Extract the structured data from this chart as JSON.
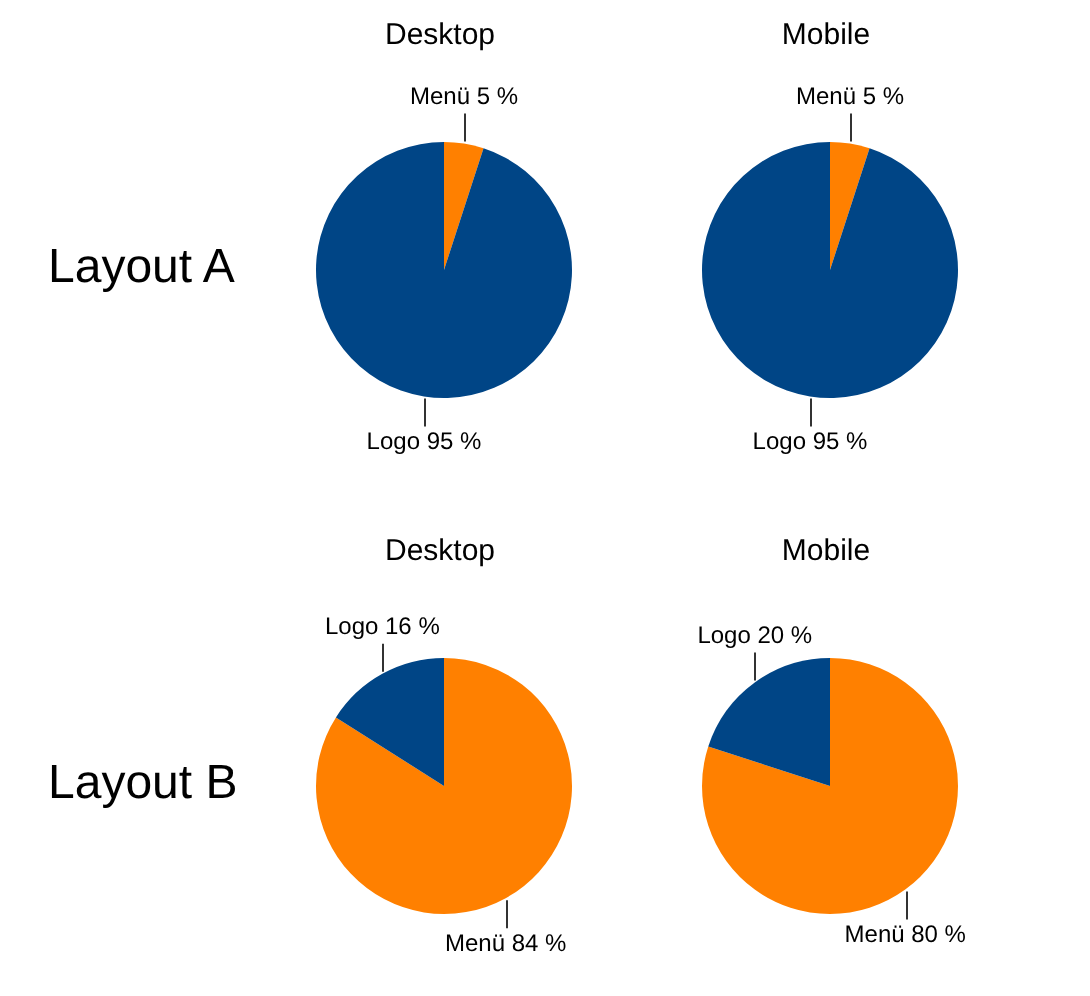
{
  "chart_data": [
    {
      "type": "pie",
      "title": "Desktop",
      "annotations": [
        "Layout A"
      ],
      "categories": [
        "Menü",
        "Logo"
      ],
      "values": [
        5,
        95
      ],
      "colors": [
        "#ff8000",
        "#004586"
      ],
      "value_labels": [
        "5 %",
        "95 %"
      ]
    },
    {
      "type": "pie",
      "title": "Mobile",
      "categories": [
        "Menü",
        "Logo"
      ],
      "values": [
        5,
        95
      ],
      "colors": [
        "#ff8000",
        "#004586"
      ],
      "value_labels": [
        "5 %",
        "95 %"
      ]
    },
    {
      "type": "pie",
      "title": "Desktop",
      "annotations": [
        "Layout B"
      ],
      "categories": [
        "Menü",
        "Logo"
      ],
      "values": [
        84,
        16
      ],
      "colors": [
        "#ff8000",
        "#004586"
      ],
      "value_labels": [
        "84 %",
        "16 %"
      ]
    },
    {
      "type": "pie",
      "title": "Mobile",
      "categories": [
        "Menü",
        "Logo"
      ],
      "values": [
        80,
        20
      ],
      "colors": [
        "#ff8000",
        "#004586"
      ],
      "value_labels": [
        "80 %",
        "20 %"
      ]
    }
  ]
}
